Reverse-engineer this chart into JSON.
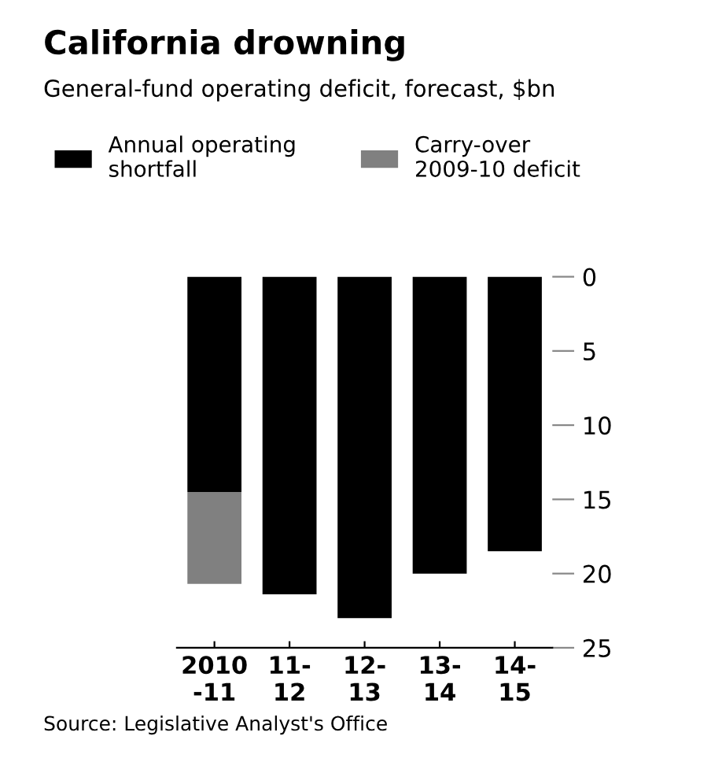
{
  "chart_data": {
    "type": "bar",
    "title": "California drowning",
    "subtitle": "General-fund operating deficit, forecast, $bn",
    "categories": [
      "2010\n-11",
      "11-\n12",
      "12-\n13",
      "13-\n14",
      "14-\n15"
    ],
    "stacked": true,
    "series": [
      {
        "name": "Annual operating\nshortfall",
        "color": "#000000",
        "values": [
          14.5,
          21.4,
          23.0,
          20.0,
          18.5
        ]
      },
      {
        "name": "Carry-over\n2009-10 deficit",
        "color": "#808080",
        "values": [
          6.2,
          null,
          null,
          null,
          null
        ]
      }
    ],
    "ylim": [
      25,
      0
    ],
    "yticks": [
      0,
      5,
      10,
      15,
      20,
      25
    ],
    "grid": false,
    "legend": "top left",
    "annotations": [
      "Source: Legislative Analyst's Office"
    ]
  }
}
